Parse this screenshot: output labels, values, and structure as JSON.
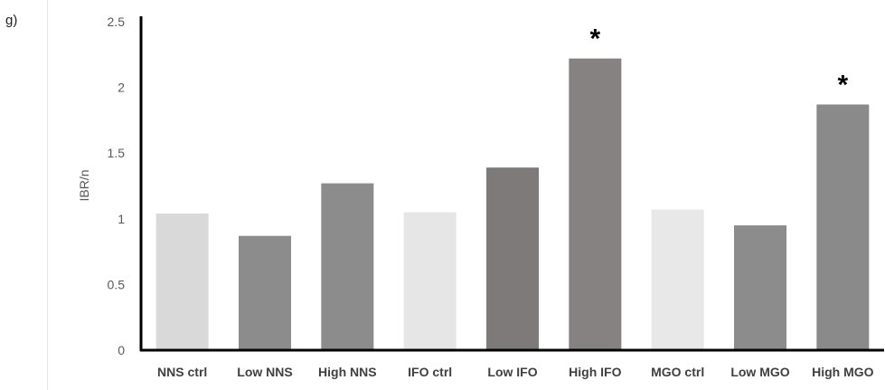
{
  "panel_label": "g)",
  "chart_data": {
    "type": "bar",
    "title": "",
    "xlabel": "",
    "ylabel": "IBR/n",
    "ylim": [
      0,
      2.5
    ],
    "yticks": [
      "0",
      "0.5",
      "1",
      "1.5",
      "2",
      "2.5"
    ],
    "grid": false,
    "categories": [
      "NNS ctrl",
      "Low NNS",
      "High NNS",
      "IFO ctrl",
      "Low IFO",
      "High IFO",
      "MGO ctrl",
      "Low MGO",
      "High MGO"
    ],
    "values": [
      1.04,
      0.87,
      1.27,
      1.05,
      1.39,
      2.22,
      1.07,
      0.95,
      1.87
    ],
    "colors": [
      "#d9d9d9",
      "#8c8c8c",
      "#8c8c8c",
      "#e6e6e6",
      "#7f7a7a",
      "#868282",
      "#e8e8e8",
      "#8c8c8c",
      "#8a8a8a"
    ],
    "annotations": [
      "",
      "",
      "",
      "",
      "",
      "*",
      "",
      "",
      "*"
    ]
  }
}
